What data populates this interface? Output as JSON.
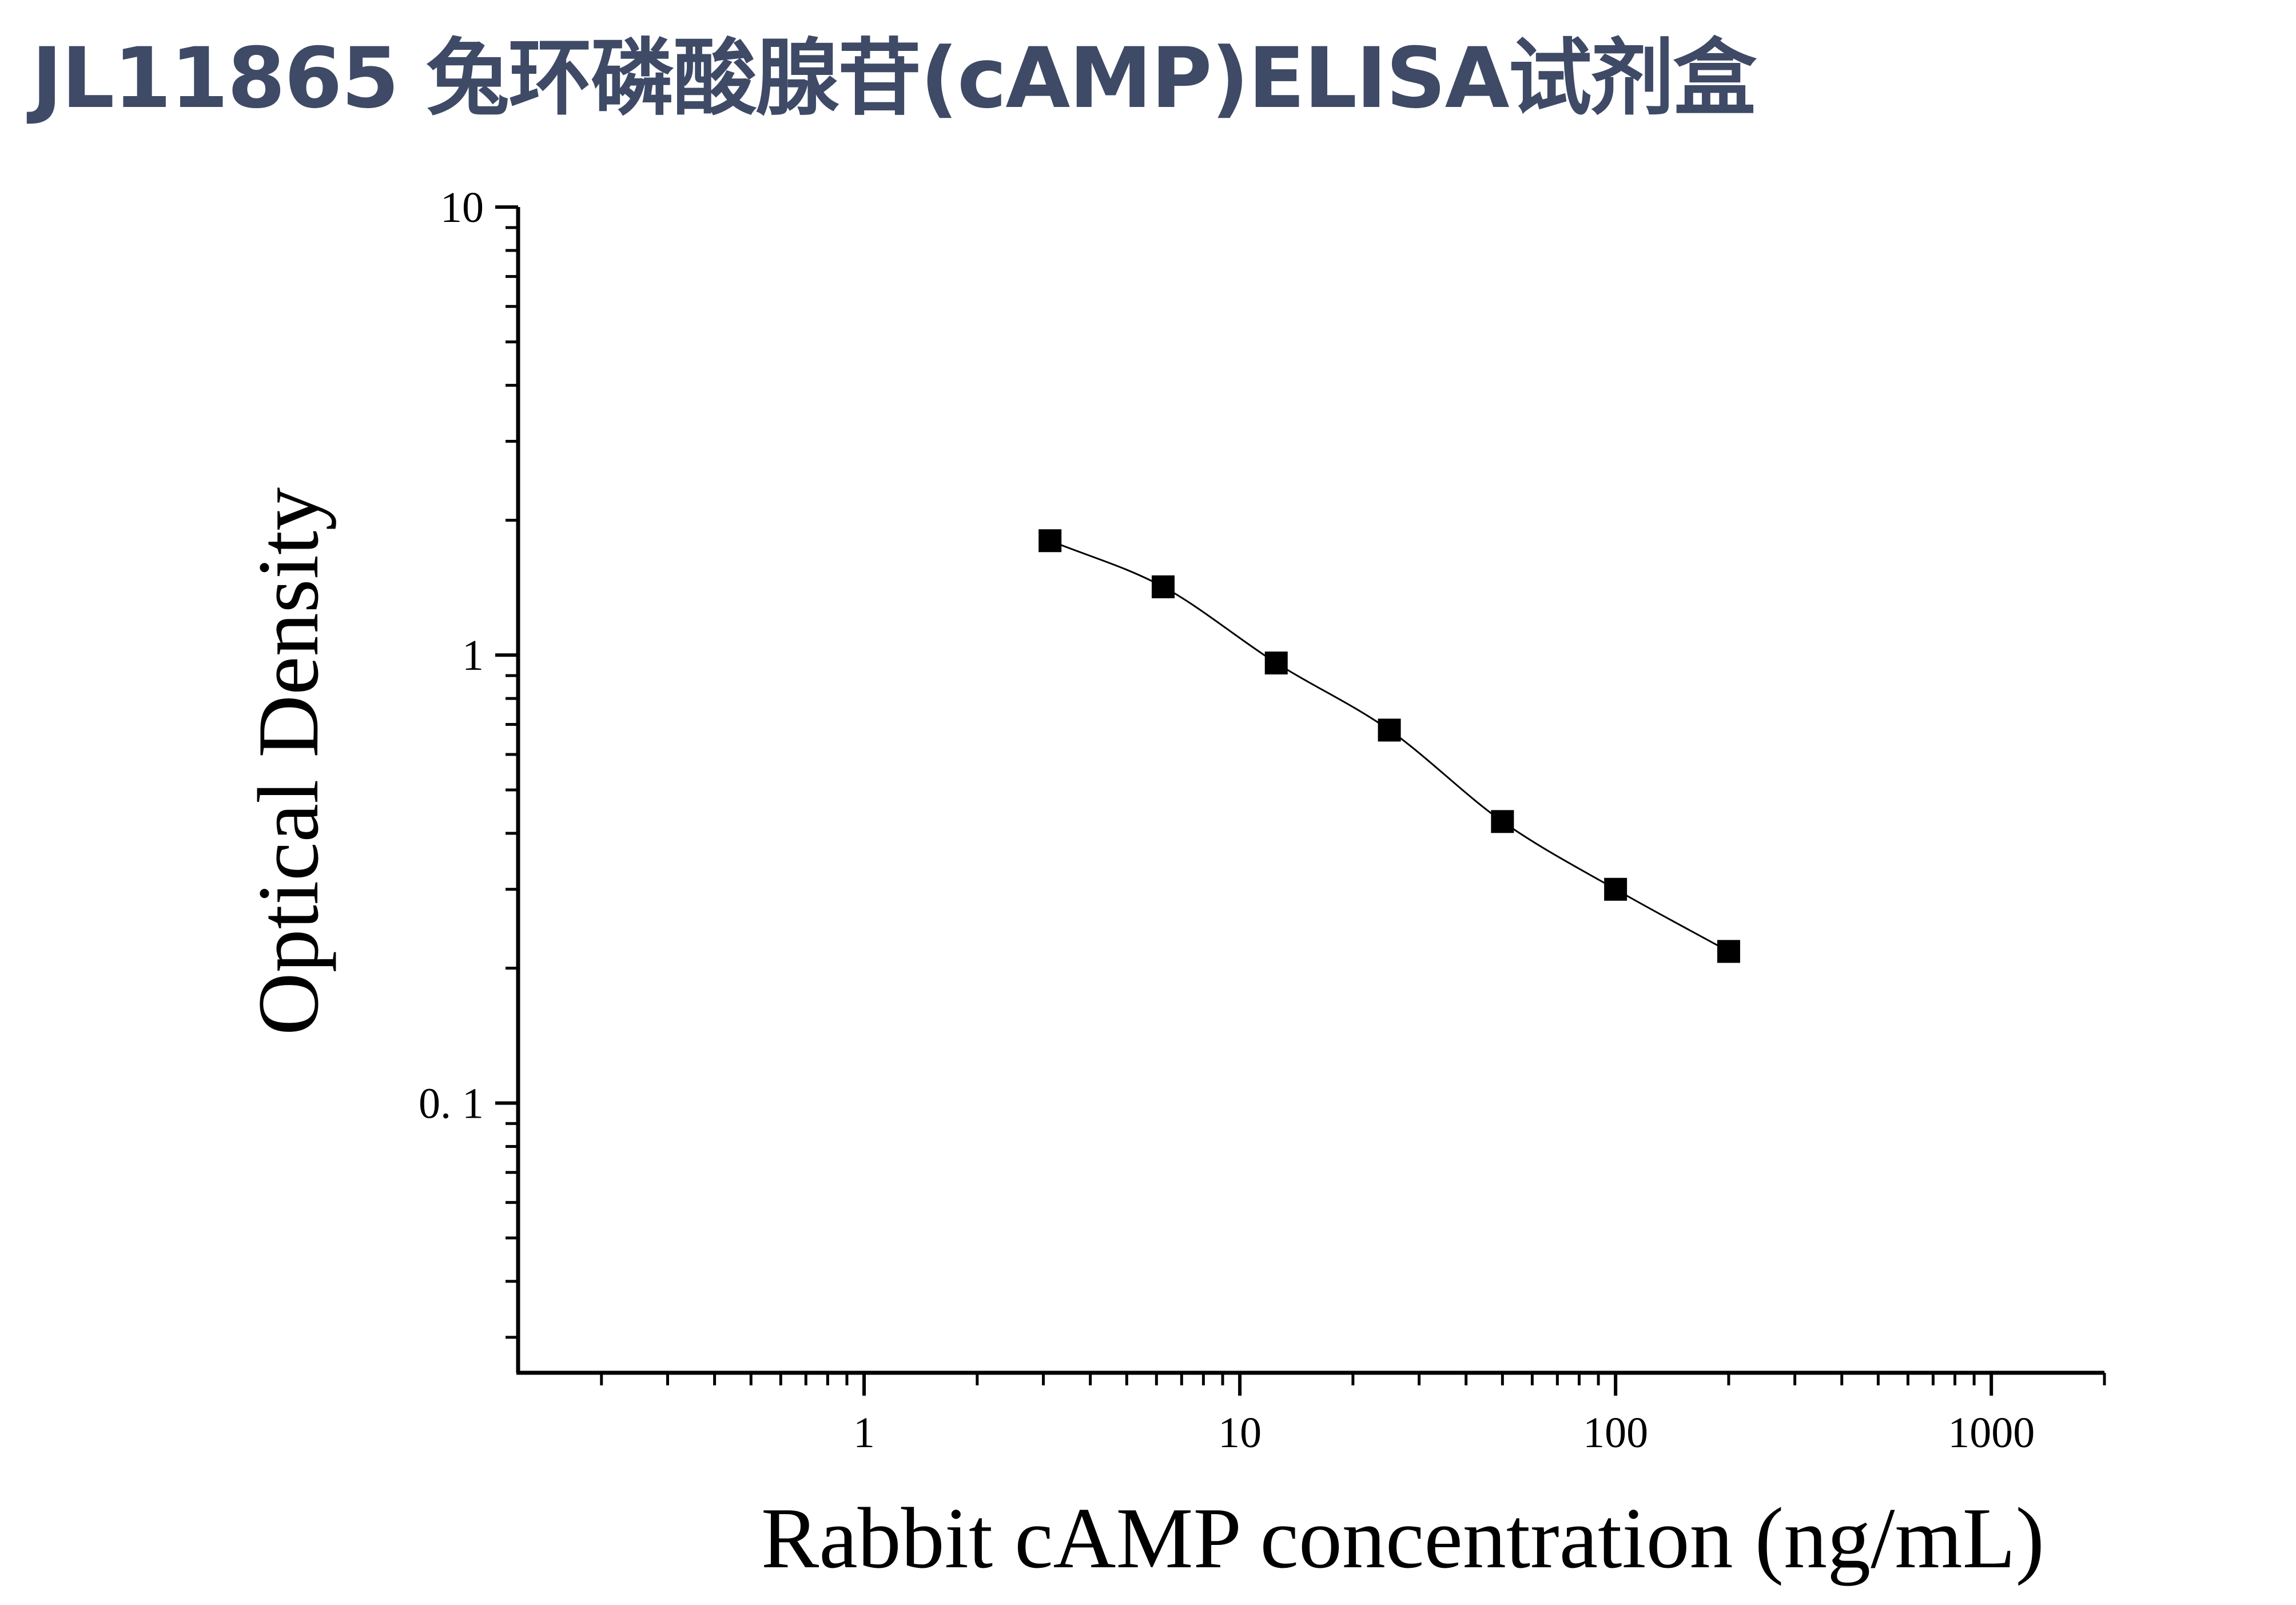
{
  "title": "JL11865 兔环磷酸腺苷(cAMP)ELISA试剂盒",
  "chart_data": {
    "type": "scatter",
    "title": "",
    "xlabel": "Rabbit cAMP concentration (ng/mL)",
    "ylabel": "Optical Density",
    "xscale": "log",
    "yscale": "log",
    "xlim": [
      0.12,
      2000
    ],
    "ylim": [
      0.025,
      10
    ],
    "xticks": [
      1,
      10,
      100,
      1000
    ],
    "xtick_labels": [
      "1",
      "10",
      "100",
      "1000"
    ],
    "yticks": [
      0.1,
      1,
      10
    ],
    "ytick_labels": [
      "0. 1",
      "1",
      "10"
    ],
    "grid": false,
    "legend": "none",
    "marker": "square",
    "marker_color": "#000000",
    "series": [
      {
        "x": [
          3.125,
          6.25,
          12.5,
          25,
          50,
          100,
          200
        ],
        "y": [
          1.8,
          1.42,
          0.96,
          0.68,
          0.425,
          0.3,
          0.218
        ]
      }
    ],
    "fit_curve": "smooth line through points"
  }
}
